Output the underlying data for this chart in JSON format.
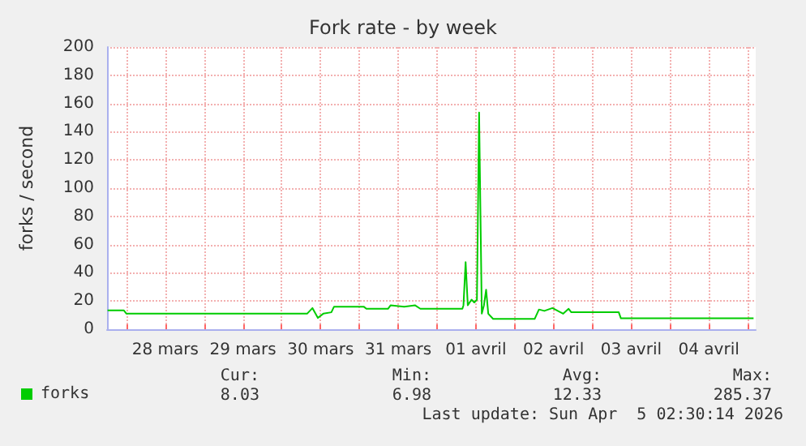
{
  "chart_data": {
    "type": "line",
    "title": "Fork rate - by week",
    "ylabel": "forks / second",
    "x": [
      "2026-03-27T18:10",
      "2026-03-27T23:10",
      "2026-03-28T00:00",
      "2026-03-30T07:50",
      "2026-03-30T09:30",
      "2026-03-30T11:10",
      "2026-03-30T12:50",
      "2026-03-30T15:20",
      "2026-03-30T16:10",
      "2026-03-31T01:20",
      "2026-03-31T02:10",
      "2026-03-31T08:50",
      "2026-03-31T09:40",
      "2026-03-31T13:50",
      "2026-03-31T17:10",
      "2026-03-31T18:50",
      "2026-04-01T07:50",
      "2026-04-01T08:10",
      "2026-04-01T08:50",
      "2026-04-01T09:30",
      "2026-04-01T10:40",
      "2026-04-01T11:30",
      "2026-04-01T12:20",
      "2026-04-01T13:00",
      "2026-04-01T13:50",
      "2026-04-01T14:30",
      "2026-04-01T15:10",
      "2026-04-01T15:50",
      "2026-04-01T17:20",
      "2026-04-02T06:10",
      "2026-04-02T07:30",
      "2026-04-02T09:10",
      "2026-04-02T11:40",
      "2026-04-02T13:20",
      "2026-04-02T15:00",
      "2026-04-02T16:40",
      "2026-04-02T17:30",
      "2026-04-03T08:10",
      "2026-04-03T08:50",
      "2026-04-05T01:50"
    ],
    "series": [
      {
        "name": "forks",
        "color": "#00cc00",
        "values": [
          13.4,
          13.4,
          11,
          11,
          15,
          8,
          11,
          12,
          16,
          16,
          14.5,
          14.5,
          17,
          16,
          17,
          14.5,
          14.5,
          17,
          47.5,
          17,
          21,
          19,
          21,
          153.6,
          11,
          17,
          28,
          11,
          7.3,
          7.3,
          14,
          13,
          15,
          13,
          11,
          14.5,
          12,
          12,
          7.7,
          7.7
        ]
      }
    ],
    "xlim": [
      "2026-03-27T18:00",
      "2026-04-05T02:30"
    ],
    "xticks": [
      {
        "value": "2026-03-28T00:00",
        "label": null
      },
      {
        "value": "2026-03-28T12:00",
        "label": "28 mars"
      },
      {
        "value": "2026-03-29T00:00",
        "label": null
      },
      {
        "value": "2026-03-29T12:00",
        "label": "29 mars"
      },
      {
        "value": "2026-03-30T00:00",
        "label": null
      },
      {
        "value": "2026-03-30T12:00",
        "label": "30 mars"
      },
      {
        "value": "2026-03-31T00:00",
        "label": null
      },
      {
        "value": "2026-03-31T12:00",
        "label": "31 mars"
      },
      {
        "value": "2026-04-01T00:00",
        "label": null
      },
      {
        "value": "2026-04-01T12:00",
        "label": "01 avril"
      },
      {
        "value": "2026-04-02T00:00",
        "label": null
      },
      {
        "value": "2026-04-02T12:00",
        "label": "02 avril"
      },
      {
        "value": "2026-04-03T00:00",
        "label": null
      },
      {
        "value": "2026-04-03T12:00",
        "label": "03 avril"
      },
      {
        "value": "2026-04-04T00:00",
        "label": null
      },
      {
        "value": "2026-04-04T12:00",
        "label": "04 avril"
      },
      {
        "value": "2026-04-05T00:00",
        "label": null
      }
    ],
    "ylim": [
      0,
      200
    ],
    "yticks": [
      0,
      20,
      40,
      60,
      80,
      100,
      120,
      140,
      160,
      180,
      200
    ],
    "grid": true,
    "legend": "bottom left",
    "marker": "none",
    "line_style": "solid",
    "annotations": [
      "Cur:",
      "Min:",
      "Avg:",
      "Max:",
      "8.03",
      "6.98",
      "12.33",
      "285.37",
      "Last update: Sun Apr  5 02:30:14 2026"
    ]
  }
}
